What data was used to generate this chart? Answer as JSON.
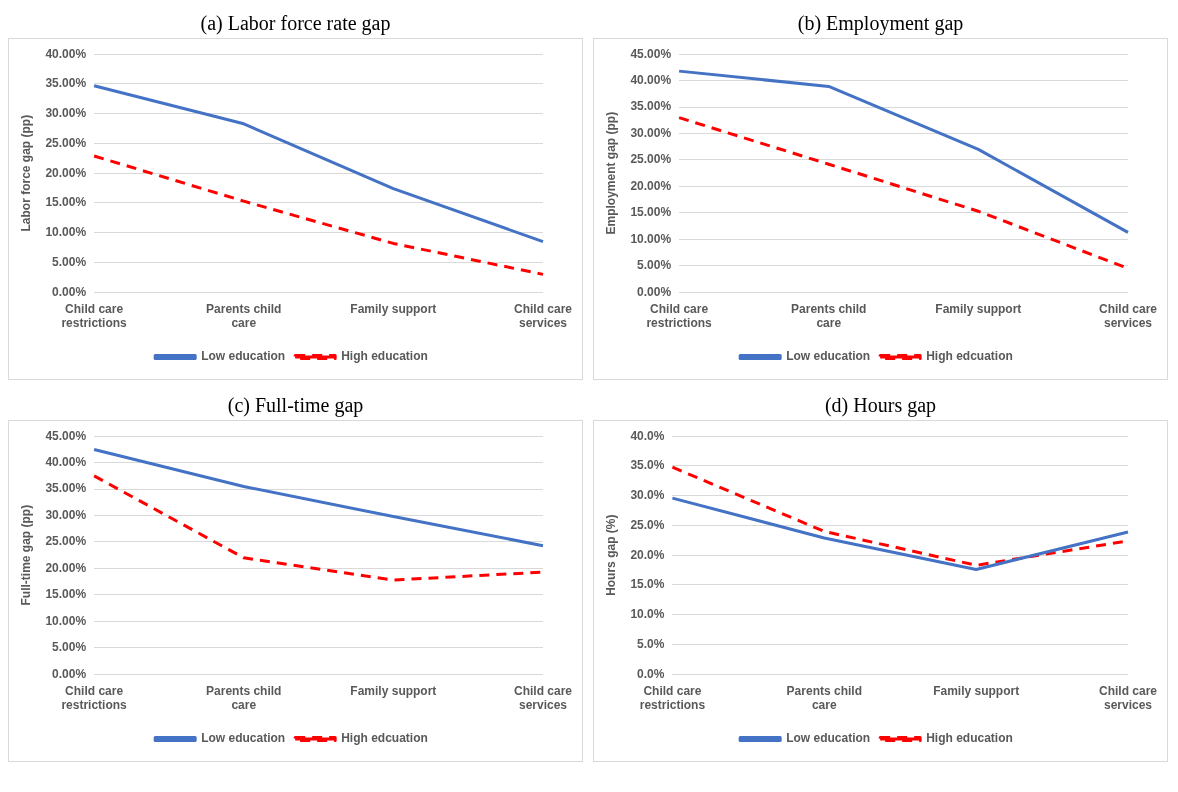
{
  "chart_data": [
    {
      "type": "line",
      "title": "(a) Labor force rate gap",
      "ylabel": "Labor force gap (pp)",
      "categories": [
        "Child care restrictions",
        "Parents child care",
        "Family support",
        "Child care services"
      ],
      "series": [
        {
          "name": "Low education",
          "color": "#4472c4",
          "line_style": "solid",
          "values": [
            34.7,
            28.3,
            17.4,
            8.5
          ]
        },
        {
          "name": "High education",
          "color": "#ff0000",
          "line_style": "dashed",
          "values": [
            22.9,
            15.3,
            8.2,
            3.0
          ]
        }
      ],
      "ylim": [
        0,
        40
      ],
      "yticks": [
        {
          "value": 0,
          "label": "0.00%"
        },
        {
          "value": 5,
          "label": "5.00%"
        },
        {
          "value": 10,
          "label": "10.00%"
        },
        {
          "value": 15,
          "label": "15.00%"
        },
        {
          "value": 20,
          "label": "20.00%"
        },
        {
          "value": 25,
          "label": "25.00%"
        },
        {
          "value": 30,
          "label": "30.00%"
        },
        {
          "value": 35,
          "label": "35.00%"
        },
        {
          "value": 40,
          "label": "40.00%"
        }
      ],
      "grid": "y",
      "legend": "bottom",
      "marker": "none"
    },
    {
      "type": "line",
      "title": "(b) Employment gap",
      "ylabel": "Employment gap (pp)",
      "categories": [
        "Child care restrictions",
        "Parents child care",
        "Family support",
        "Child care services"
      ],
      "series": [
        {
          "name": "Low education",
          "color": "#4472c4",
          "line_style": "solid",
          "values": [
            41.8,
            38.9,
            27.0,
            11.3
          ]
        },
        {
          "name": "High edcuation",
          "color": "#ff0000",
          "line_style": "dashed",
          "values": [
            33.0,
            24.2,
            15.3,
            4.5
          ]
        }
      ],
      "ylim": [
        0,
        45
      ],
      "yticks": [
        {
          "value": 0,
          "label": "0.00%"
        },
        {
          "value": 5,
          "label": "5.00%"
        },
        {
          "value": 10,
          "label": "10.00%"
        },
        {
          "value": 15,
          "label": "15.00%"
        },
        {
          "value": 20,
          "label": "20.00%"
        },
        {
          "value": 25,
          "label": "25.00%"
        },
        {
          "value": 30,
          "label": "30.00%"
        },
        {
          "value": 35,
          "label": "35.00%"
        },
        {
          "value": 40,
          "label": "40.00%"
        },
        {
          "value": 45,
          "label": "45.00%"
        }
      ],
      "grid": "y",
      "legend": "bottom",
      "marker": "none"
    },
    {
      "type": "line",
      "title": "(c) Full-time gap",
      "ylabel": "Full-time gap (pp)",
      "categories": [
        "Child care restrictions",
        "Parents child care",
        "Family support",
        "Child care services"
      ],
      "series": [
        {
          "name": "Low education",
          "color": "#4472c4",
          "line_style": "solid",
          "values": [
            42.5,
            35.5,
            29.8,
            24.3
          ]
        },
        {
          "name": "High edcuation",
          "color": "#ff0000",
          "line_style": "dashed",
          "values": [
            37.5,
            22.0,
            17.8,
            19.3
          ]
        }
      ],
      "ylim": [
        0,
        45
      ],
      "yticks": [
        {
          "value": 0,
          "label": "0.00%"
        },
        {
          "value": 5,
          "label": "5.00%"
        },
        {
          "value": 10,
          "label": "10.00%"
        },
        {
          "value": 15,
          "label": "15.00%"
        },
        {
          "value": 20,
          "label": "20.00%"
        },
        {
          "value": 25,
          "label": "25.00%"
        },
        {
          "value": 30,
          "label": "30.00%"
        },
        {
          "value": 35,
          "label": "35.00%"
        },
        {
          "value": 40,
          "label": "40.00%"
        },
        {
          "value": 45,
          "label": "45.00%"
        }
      ],
      "grid": "y",
      "legend": "bottom",
      "marker": "none"
    },
    {
      "type": "line",
      "title": "(d) Hours gap",
      "ylabel": "Hours gap (%)",
      "categories": [
        "Child care restrictions",
        "Parents child care",
        "Family support",
        "Child care services"
      ],
      "series": [
        {
          "name": "Low education",
          "color": "#4472c4",
          "line_style": "solid",
          "values": [
            29.6,
            22.9,
            17.6,
            23.9
          ]
        },
        {
          "name": "High education",
          "color": "#ff0000",
          "line_style": "dashed",
          "values": [
            34.8,
            24.0,
            18.3,
            22.4
          ]
        }
      ],
      "ylim": [
        0,
        40
      ],
      "yticks": [
        {
          "value": 0,
          "label": "0.0%"
        },
        {
          "value": 5,
          "label": "5.0%"
        },
        {
          "value": 10,
          "label": "10.0%"
        },
        {
          "value": 15,
          "label": "15.0%"
        },
        {
          "value": 20,
          "label": "20.0%"
        },
        {
          "value": 25,
          "label": "25.0%"
        },
        {
          "value": 30,
          "label": "30.0%"
        },
        {
          "value": 35,
          "label": "35.0%"
        },
        {
          "value": 40,
          "label": "40.0%"
        }
      ],
      "grid": "y",
      "legend": "bottom",
      "marker": "none"
    }
  ]
}
